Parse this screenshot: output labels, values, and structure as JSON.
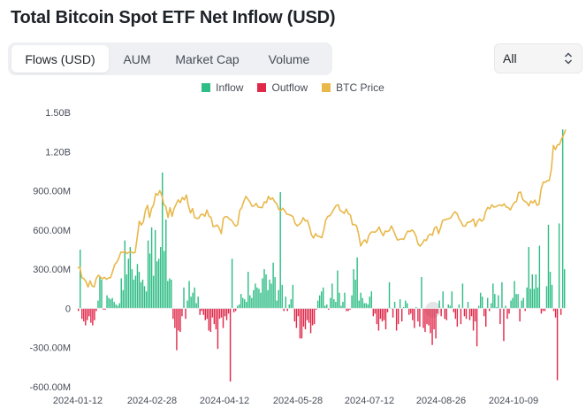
{
  "title": "Total Bitcoin Spot ETF Net Inflow (USD)",
  "tabs": [
    {
      "label": "Flows (USD)",
      "active": true
    },
    {
      "label": "AUM",
      "active": false
    },
    {
      "label": "Market Cap",
      "active": false
    },
    {
      "label": "Volume",
      "active": false
    }
  ],
  "select": {
    "value": "All"
  },
  "colors": {
    "inflow": "#2ebd85",
    "outflow": "#e0294a",
    "btc": "#e8b84a"
  },
  "chart_data": {
    "type": "bar",
    "legend": [
      "Inflow",
      "Outflow",
      "BTC Price"
    ],
    "y_ticks": [
      "1.50B",
      "1.20B",
      "900.00M",
      "600.00M",
      "300.00M",
      "0",
      "-300.00M",
      "-600.00M"
    ],
    "ylim": [
      -600000000,
      1500000000
    ],
    "x_ticks": [
      "2024-01-12",
      "2024-02-28",
      "2024-04-12",
      "2024-05-28",
      "2024-07-12",
      "2024-08-26",
      "2024-10-09"
    ],
    "series": [
      {
        "name": "Inflow",
        "kind": "bar"
      },
      {
        "name": "Outflow",
        "kind": "bar"
      },
      {
        "name": "BTC Price",
        "kind": "line"
      }
    ],
    "flows_musd": [
      -20,
      450,
      -80,
      -100,
      -130,
      -90,
      -60,
      -110,
      -130,
      -90,
      -20,
      60,
      250,
      220,
      -10,
      -10,
      100,
      80,
      70,
      80,
      50,
      30,
      20,
      40,
      230,
      140,
      520,
      260,
      380,
      470,
      300,
      220,
      250,
      340,
      280,
      200,
      220,
      170,
      130,
      520,
      420,
      620,
      250,
      600,
      360,
      380,
      470,
      1040,
      440,
      680,
      210,
      230,
      220,
      -80,
      -150,
      -320,
      -170,
      -180,
      -60,
      160,
      -80,
      60,
      210,
      90,
      120,
      160,
      40,
      90,
      -50,
      -20,
      -50,
      -90,
      -80,
      -170,
      -180,
      -70,
      -120,
      -160,
      -310,
      -80,
      -70,
      -150,
      -60,
      -90,
      -40,
      -560,
      380,
      -30,
      -20,
      20,
      30,
      110,
      80,
      70,
      50,
      280,
      100,
      80,
      140,
      190,
      160,
      150,
      120,
      230,
      300,
      260,
      140,
      220,
      190,
      350,
      240,
      60,
      140,
      890,
      180,
      -20,
      90,
      -20,
      30,
      70,
      180,
      -100,
      -150,
      -60,
      -230,
      -230,
      -140,
      -160,
      -90,
      -110,
      -190,
      -130,
      -120,
      -10,
      60,
      100,
      130,
      160,
      20,
      30,
      -10,
      80,
      190,
      70,
      50,
      290,
      120,
      20,
      50,
      120,
      -20,
      -20,
      -10,
      100,
      300,
      220,
      390,
      60,
      120,
      80,
      40,
      40,
      30,
      90,
      130,
      -60,
      -40,
      -120,
      -170,
      -80,
      -100,
      -90,
      -160,
      -30,
      200,
      0,
      -70,
      50,
      -170,
      -120,
      70,
      -100,
      10,
      60,
      40,
      -50,
      -40,
      -90,
      -150,
      10,
      -100,
      -140,
      240,
      -150,
      -180,
      -120,
      -130,
      -190,
      -280,
      -160,
      -230,
      -40,
      60,
      -60,
      130,
      -80,
      -90,
      30,
      20,
      130,
      -30,
      -80,
      -140,
      30,
      -120,
      190,
      -60,
      -80,
      50,
      -90,
      -60,
      -170,
      -100,
      -290,
      20,
      120,
      90,
      -60,
      -140,
      80,
      -20,
      40,
      190,
      110,
      10,
      100,
      -120,
      200,
      -250,
      20,
      -80,
      -40,
      60,
      80,
      210,
      110,
      110,
      -100,
      60,
      80,
      -20,
      160,
      470,
      150,
      260,
      150,
      260,
      160,
      480,
      -40,
      -20,
      -20,
      170,
      640,
      280,
      180,
      -20,
      -70,
      -550,
      650,
      -50,
      1370,
      300
    ],
    "btc_price_usd": [
      46300,
      46700,
      43000,
      42600,
      41600,
      39700,
      41900,
      40100,
      39800,
      42700,
      43800,
      43200,
      42600,
      43100,
      42400,
      42900,
      43000,
      45100,
      47500,
      48300,
      49700,
      51800,
      51700,
      52100,
      51300,
      51800,
      52000,
      51500,
      51700,
      57000,
      62500,
      61200,
      62300,
      66200,
      68000,
      63800,
      66900,
      68200,
      72100,
      71500,
      73100,
      71400,
      68300,
      67500,
      63800,
      67200,
      64200,
      66900,
      68400,
      69900,
      68900,
      70700,
      69900,
      71600,
      67800,
      65400,
      66900,
      63800,
      63500,
      63500,
      64800,
      64900,
      64200,
      66400,
      64300,
      63800,
      60600,
      60800,
      61200,
      60100,
      58200,
      63500,
      64100,
      64000,
      63200,
      62900,
      61700,
      60800,
      61300,
      66200,
      67200,
      69400,
      71100,
      70100,
      69100,
      67700,
      67800,
      68700,
      67400,
      67300,
      67200,
      69200,
      68900,
      71100,
      70000,
      70600,
      69300,
      68600,
      66700,
      66200,
      67000,
      66100,
      64900,
      64800,
      64500,
      64100,
      61800,
      60900,
      61400,
      62100,
      63700,
      62600,
      62800,
      60600,
      57800,
      56700,
      58200,
      57300,
      57200,
      56800,
      59300,
      63000,
      64200,
      64400,
      65500,
      66800,
      67900,
      68200,
      66200,
      65800,
      65200,
      66700,
      65100,
      64600,
      61300,
      61400,
      60900,
      58100,
      53900,
      55300,
      56100,
      55000,
      57600,
      58700,
      58800,
      58700,
      59300,
      60500,
      58700,
      57500,
      59100,
      58900,
      59300,
      60900,
      59300,
      57500,
      56000,
      56200,
      56400,
      56200,
      57900,
      59100,
      58900,
      59500,
      58800,
      57300,
      54600,
      53900,
      54700,
      56100,
      55800,
      57500,
      58100,
      57600,
      60200,
      60600,
      58200,
      60300,
      62800,
      63000,
      63200,
      63400,
      63700,
      64900,
      65800,
      65100,
      63300,
      62200,
      60800,
      60800,
      62100,
      62200,
      62500,
      63300,
      60600,
      62400,
      63300,
      62500,
      63100,
      65900,
      67300,
      66800,
      68200,
      67400,
      67500,
      68000,
      68100,
      67800,
      68500,
      67400,
      67200,
      66400,
      67900,
      69000,
      69300,
      72400,
      72600,
      70100,
      69400,
      69000,
      67800,
      69500,
      68800,
      69800,
      68000,
      68400,
      73500,
      76000,
      75900,
      76500,
      76600,
      80400,
      88700,
      87300,
      88900,
      89000,
      91000,
      92300,
      94200
    ]
  }
}
